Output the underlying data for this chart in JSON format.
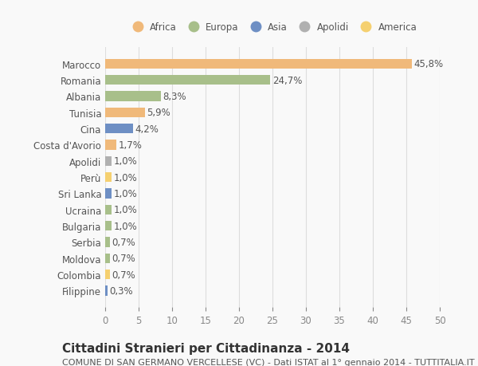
{
  "categories": [
    "Marocco",
    "Romania",
    "Albania",
    "Tunisia",
    "Cina",
    "Costa d'Avorio",
    "Apolidi",
    "Perù",
    "Sri Lanka",
    "Ucraina",
    "Bulgaria",
    "Serbia",
    "Moldova",
    "Colombia",
    "Filippine"
  ],
  "values": [
    45.8,
    24.7,
    8.3,
    5.9,
    4.2,
    1.7,
    1.0,
    1.0,
    1.0,
    1.0,
    1.0,
    0.7,
    0.7,
    0.7,
    0.3
  ],
  "labels": [
    "45,8%",
    "24,7%",
    "8,3%",
    "5,9%",
    "4,2%",
    "1,7%",
    "1,0%",
    "1,0%",
    "1,0%",
    "1,0%",
    "1,0%",
    "0,7%",
    "0,7%",
    "0,7%",
    "0,3%"
  ],
  "colors": [
    "#f0b97a",
    "#a8bf8a",
    "#a8bf8a",
    "#f0b97a",
    "#6e8fc4",
    "#f0b97a",
    "#b0b0b0",
    "#f5d070",
    "#6e8fc4",
    "#a8bf8a",
    "#a8bf8a",
    "#a8bf8a",
    "#a8bf8a",
    "#f5d070",
    "#6e8fc4"
  ],
  "legend": [
    {
      "label": "Africa",
      "color": "#f0b97a"
    },
    {
      "label": "Europa",
      "color": "#a8bf8a"
    },
    {
      "label": "Asia",
      "color": "#6e8fc4"
    },
    {
      "label": "Apolidi",
      "color": "#b0b0b0"
    },
    {
      "label": "America",
      "color": "#f5d070"
    }
  ],
  "xlim": [
    0,
    50
  ],
  "xticks": [
    0,
    5,
    10,
    15,
    20,
    25,
    30,
    35,
    40,
    45,
    50
  ],
  "title": "Cittadini Stranieri per Cittadinanza - 2014",
  "subtitle": "COMUNE DI SAN GERMANO VERCELLESE (VC) - Dati ISTAT al 1° gennaio 2014 - TUTTITALIA.IT",
  "background_color": "#f9f9f9",
  "grid_color": "#dddddd",
  "bar_height": 0.6,
  "label_fontsize": 8.5,
  "tick_fontsize": 8.5,
  "title_fontsize": 11,
  "subtitle_fontsize": 8
}
